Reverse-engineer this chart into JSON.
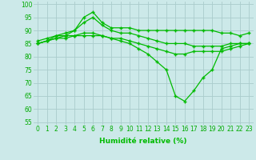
{
  "x": [
    0,
    1,
    2,
    3,
    4,
    5,
    6,
    7,
    8,
    9,
    10,
    11,
    12,
    13,
    14,
    15,
    16,
    17,
    18,
    19,
    20,
    21,
    22,
    23
  ],
  "series": [
    [
      86,
      87,
      88,
      88,
      90,
      95,
      97,
      93,
      91,
      91,
      91,
      90,
      90,
      90,
      90,
      90,
      90,
      90,
      90,
      90,
      89,
      89,
      88,
      89
    ],
    [
      85,
      86,
      88,
      89,
      90,
      93,
      95,
      92,
      90,
      89,
      89,
      88,
      87,
      86,
      85,
      85,
      85,
      84,
      84,
      84,
      84,
      85,
      85,
      85
    ],
    [
      85,
      86,
      87,
      88,
      88,
      89,
      89,
      88,
      87,
      87,
      86,
      85,
      84,
      83,
      82,
      81,
      81,
      82,
      82,
      82,
      82,
      83,
      84,
      85
    ],
    [
      85,
      86,
      87,
      87,
      88,
      88,
      88,
      88,
      87,
      86,
      85,
      83,
      81,
      78,
      75,
      65,
      63,
      67,
      72,
      75,
      83,
      84,
      85,
      85
    ]
  ],
  "line_color": "#00bb00",
  "marker": "+",
  "markersize": 3,
  "markeredgewidth": 1.0,
  "linewidth": 0.9,
  "xlabel": "Humidité relative (%)",
  "xlabel_fontsize": 6.5,
  "ylabel_ticks": [
    55,
    60,
    65,
    70,
    75,
    80,
    85,
    90,
    95,
    100
  ],
  "xlim": [
    -0.5,
    23.5
  ],
  "ylim": [
    54,
    101
  ],
  "bg_color": "#cce9e9",
  "grid_color": "#aacccc",
  "tick_fontsize": 5.5,
  "tick_color": "#00aa00"
}
